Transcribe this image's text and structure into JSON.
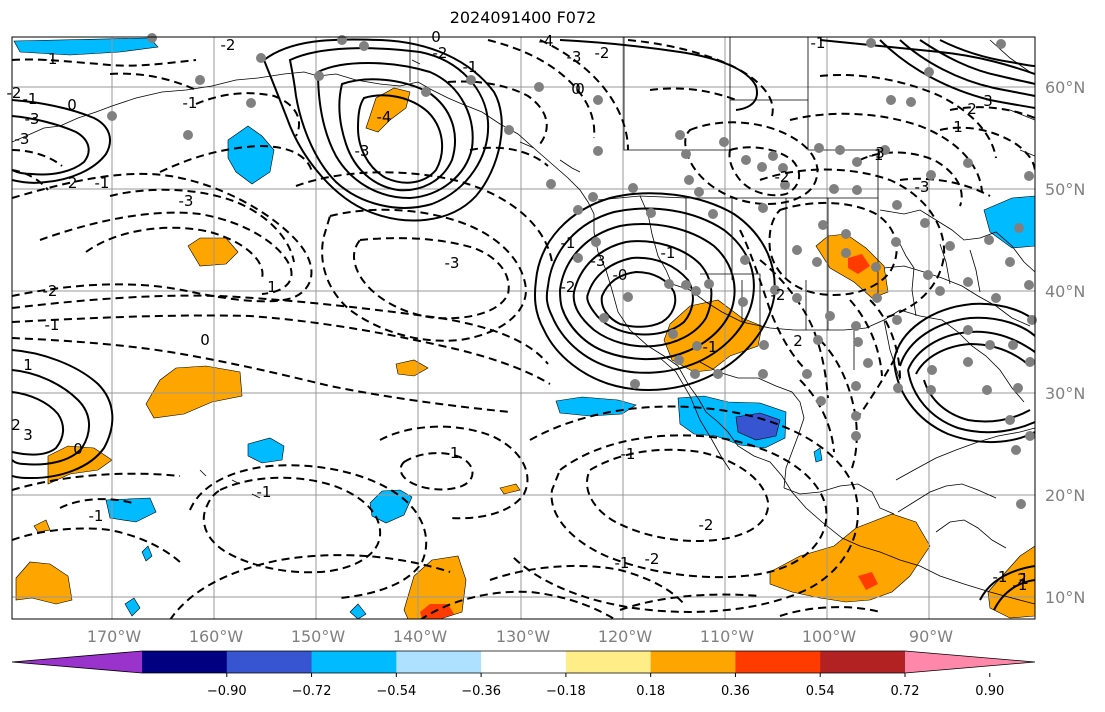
{
  "title": "2024091400 F072",
  "lat_labels": [
    "60°N",
    "50°N",
    "40°N",
    "30°N",
    "20°N",
    "10°N"
  ],
  "lon_labels": [
    "170°W",
    "160°W",
    "150°W",
    "140°W",
    "130°W",
    "120°W",
    "110°W",
    "100°W",
    "90°W"
  ],
  "colorbar": {
    "ticks": [
      "−0.90",
      "−0.72",
      "−0.54",
      "−0.36",
      "−0.18",
      "0.18",
      "0.36",
      "0.54",
      "0.72",
      "0.90"
    ],
    "colors": [
      "#9933cc",
      "#000080",
      "#3755d0",
      "#00bbff",
      "#aee1ff",
      "#ffffff",
      "#ffee88",
      "#ffa500",
      "#ff3b00",
      "#b22222",
      "#ff88aa"
    ]
  },
  "contour_labels": [
    "-1",
    "-2",
    "-1",
    "0",
    "-3",
    "-1",
    "-2",
    "-3",
    "1",
    "2",
    "3",
    "-1",
    "-2",
    "-3",
    "0",
    "-4",
    "-1",
    "-3",
    "-2",
    "1",
    "0",
    "-1",
    "-3",
    "-2",
    "-1",
    "-2",
    "-3",
    "-4",
    "-1",
    "-2",
    "-3",
    "-1",
    "-0",
    "-1",
    "-2",
    "0",
    "-1",
    "0",
    "-1",
    "-1",
    "3",
    "2",
    "1",
    "-1",
    "-2",
    "-3",
    "-2",
    "2",
    "3",
    "0",
    "-1",
    "-2",
    "-1",
    "2",
    "1",
    "-1",
    "-1",
    "1"
  ]
}
